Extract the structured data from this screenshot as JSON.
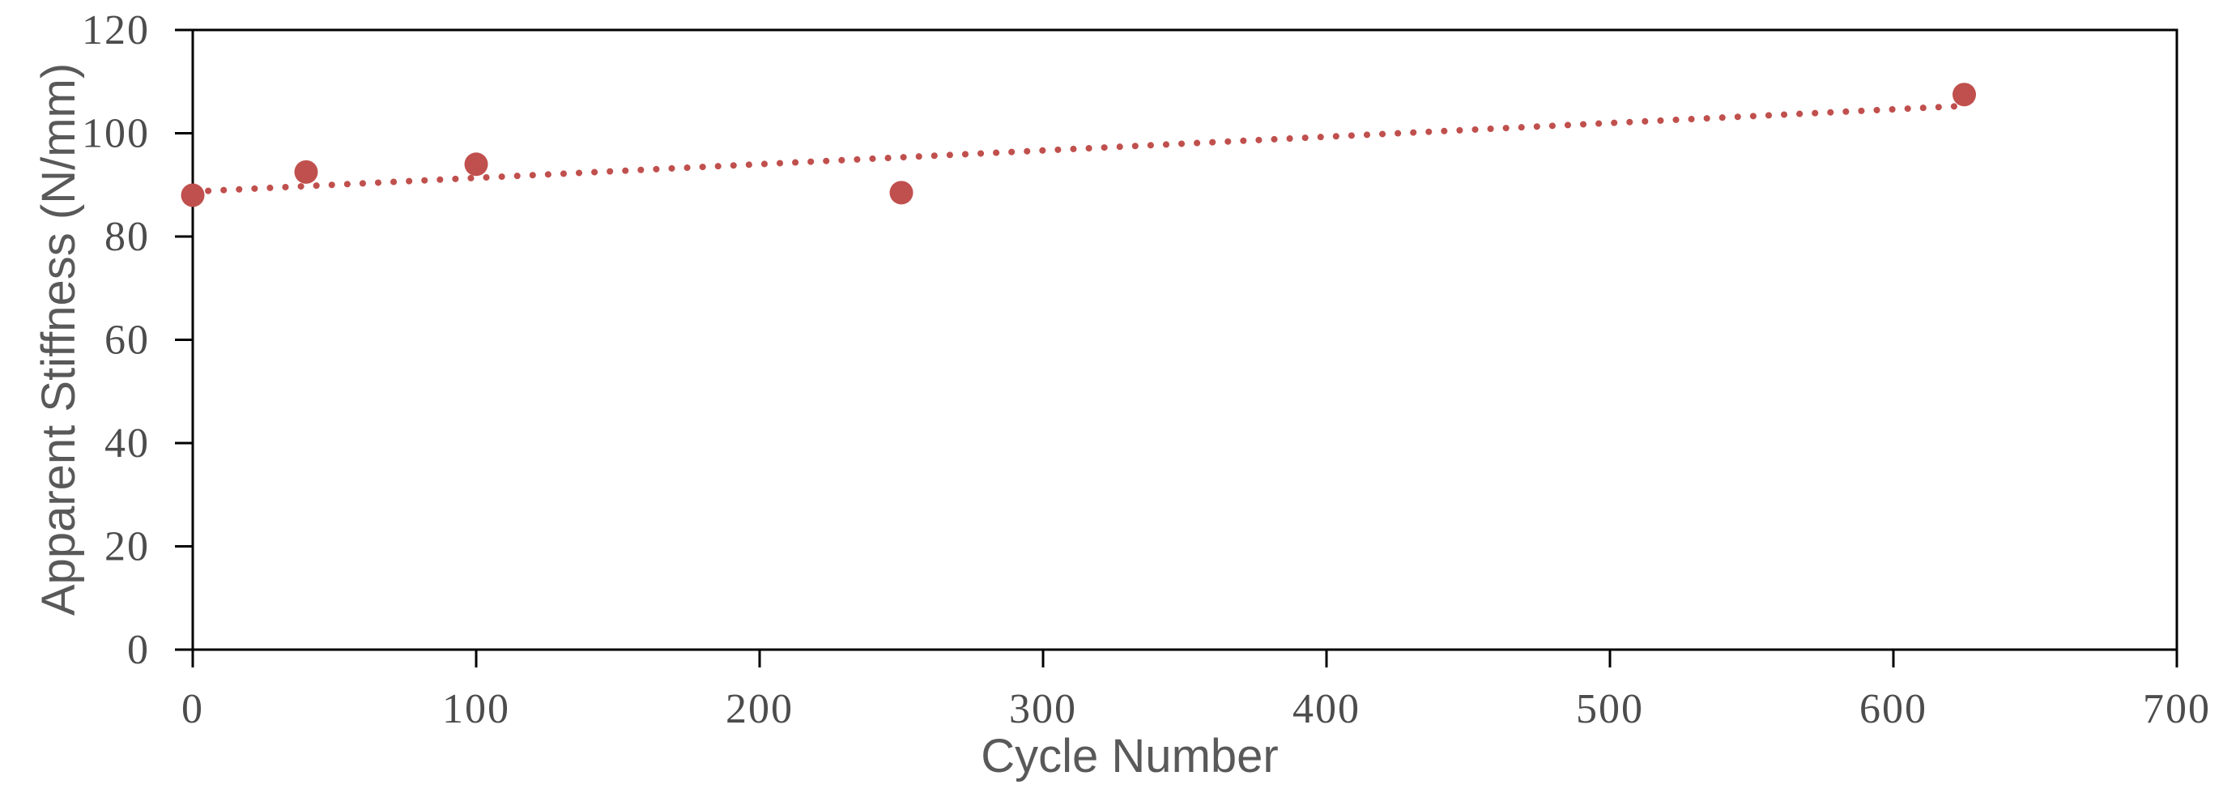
{
  "chart_data": {
    "type": "scatter",
    "title": "",
    "xlabel": "Cycle Number",
    "ylabel": "Apparent Stiffness (N/mm)",
    "xlim": [
      0,
      700
    ],
    "ylim": [
      0,
      120
    ],
    "x_tick_values": [
      0,
      100,
      200,
      300,
      400,
      500,
      600,
      700
    ],
    "x_tick_labels": [
      "0",
      "100",
      "200",
      "300",
      "400",
      "500",
      "600",
      "700"
    ],
    "y_tick_values": [
      0,
      20,
      40,
      60,
      80,
      100,
      120
    ],
    "y_tick_labels": [
      "0",
      "20",
      "40",
      "60",
      "80",
      "100",
      "120"
    ],
    "grid": "off",
    "legend": "none",
    "plot_border": "box",
    "series": [
      {
        "name": "Apparent Stiffness",
        "marker": "circle",
        "points": [
          [
            0,
            88
          ],
          [
            40,
            92.5
          ],
          [
            100,
            94
          ],
          [
            250,
            88.5
          ],
          [
            625,
            107.5
          ]
        ]
      }
    ],
    "trendline": {
      "type": "linear",
      "style": "dotted",
      "start": [
        0,
        88.7
      ],
      "end": [
        625,
        105.3
      ]
    },
    "colors": {
      "marker": "#C0504D",
      "trendline": "#C0504D",
      "axis_line": "#000000",
      "tick_label": "#4c4c4c",
      "axis_title": "#595959",
      "background": "#ffffff"
    }
  }
}
